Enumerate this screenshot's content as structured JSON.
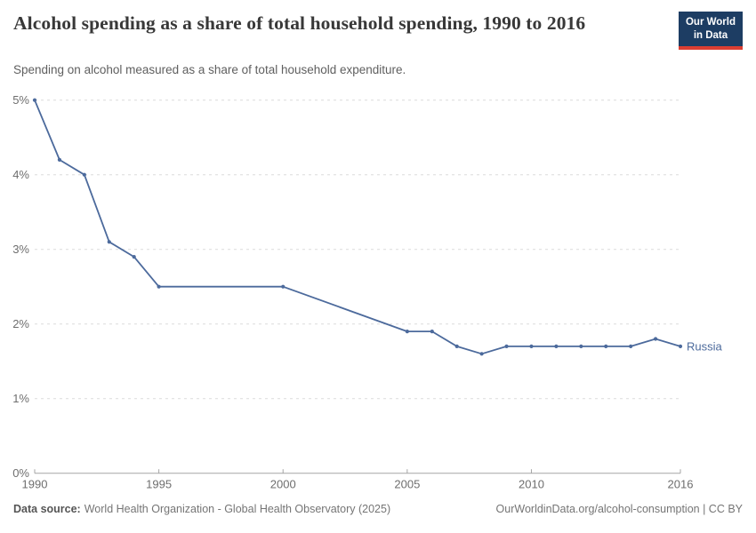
{
  "header": {
    "logo": {
      "line1": "Our World",
      "line2": "in Data"
    }
  },
  "chart_data": {
    "type": "line",
    "title": "Alcohol spending as a share of total household spending, 1990 to 2016",
    "subtitle": "Spending on alcohol measured as a share of total household expenditure.",
    "xlabel": "",
    "ylabel": "",
    "xlim": [
      1990,
      2016
    ],
    "ylim": [
      0,
      5
    ],
    "grid": "horizontal dashed",
    "legend_position": "end-of-line label",
    "x_ticks": [
      {
        "value": 1990,
        "label": "1990"
      },
      {
        "value": 1995,
        "label": "1995"
      },
      {
        "value": 2000,
        "label": "2000"
      },
      {
        "value": 2005,
        "label": "2005"
      },
      {
        "value": 2010,
        "label": "2010"
      },
      {
        "value": 2016,
        "label": "2016"
      }
    ],
    "y_ticks": [
      {
        "value": 0,
        "label": "0%"
      },
      {
        "value": 1,
        "label": "1%"
      },
      {
        "value": 2,
        "label": "2%"
      },
      {
        "value": 3,
        "label": "3%"
      },
      {
        "value": 4,
        "label": "4%"
      },
      {
        "value": 5,
        "label": "5%"
      }
    ],
    "series": [
      {
        "name": "Russia",
        "x": [
          1990,
          1991,
          1992,
          1993,
          1994,
          1995,
          2000,
          2005,
          2006,
          2007,
          2008,
          2009,
          2010,
          2011,
          2012,
          2013,
          2014,
          2015,
          2016
        ],
        "values": [
          5.0,
          4.2,
          4.0,
          3.1,
          2.9,
          2.5,
          2.5,
          1.9,
          1.9,
          1.7,
          1.6,
          1.7,
          1.7,
          1.7,
          1.7,
          1.7,
          1.7,
          1.8,
          1.7
        ]
      }
    ],
    "colors": {
      "line": "#4C6A9C",
      "grid": "#dcdcdc",
      "axis": "#a5a5a5",
      "tick_text": "#6e6e6e",
      "logo_bg": "#1d3d63",
      "logo_red": "#dc3e32"
    }
  },
  "footer": {
    "source_label": "Data source:",
    "source": "World Health Organization - Global Health Observatory (2025)",
    "link": "OurWorldinData.org/alcohol-consumption",
    "separator": " | ",
    "license": "CC BY"
  }
}
